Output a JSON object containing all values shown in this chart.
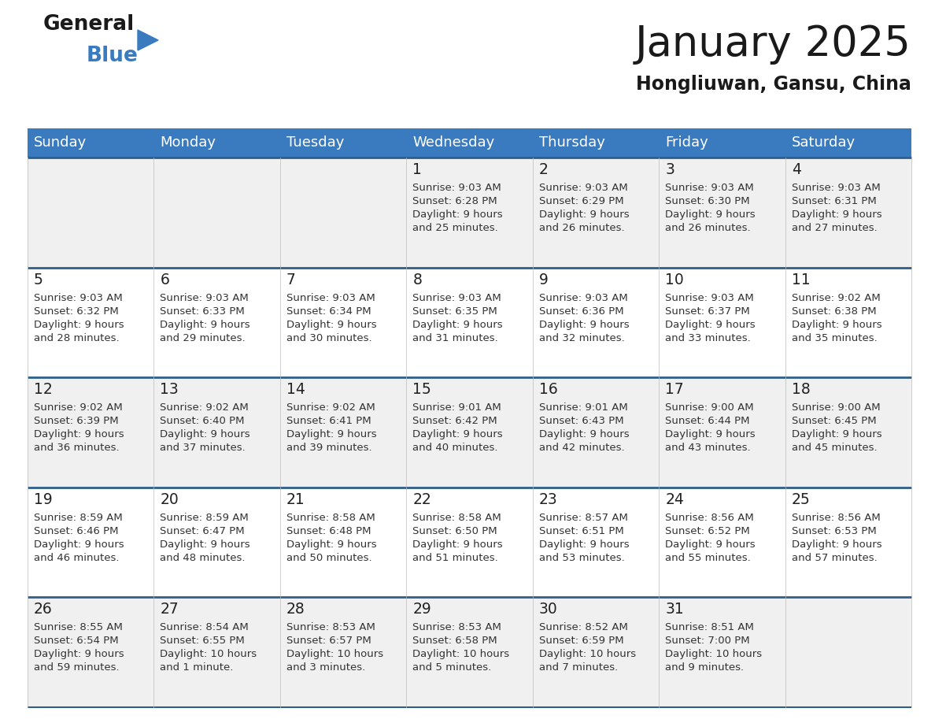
{
  "title": "January 2025",
  "subtitle": "Hongliuwan, Gansu, China",
  "days_of_week": [
    "Sunday",
    "Monday",
    "Tuesday",
    "Wednesday",
    "Thursday",
    "Friday",
    "Saturday"
  ],
  "header_bg": "#3a7bbf",
  "header_text": "#ffffff",
  "row_bg_odd": "#f0f0f0",
  "row_bg_even": "#ffffff",
  "separator_color": "#2e5f8a",
  "day_num_color": "#222222",
  "text_color": "#333333",
  "title_color": "#1a1a1a",
  "subtitle_color": "#1a1a1a",
  "logo_general_color": "#1a1a1a",
  "logo_blue_color": "#3a7bbf",
  "logo_triangle_color": "#3a7bbf",
  "calendar_data": [
    {
      "day": 1,
      "col": 3,
      "row": 0,
      "sunrise": "9:03 AM",
      "sunset": "6:28 PM",
      "daylight_h": "9 hours",
      "daylight_m": "and 25 minutes."
    },
    {
      "day": 2,
      "col": 4,
      "row": 0,
      "sunrise": "9:03 AM",
      "sunset": "6:29 PM",
      "daylight_h": "9 hours",
      "daylight_m": "and 26 minutes."
    },
    {
      "day": 3,
      "col": 5,
      "row": 0,
      "sunrise": "9:03 AM",
      "sunset": "6:30 PM",
      "daylight_h": "9 hours",
      "daylight_m": "and 26 minutes."
    },
    {
      "day": 4,
      "col": 6,
      "row": 0,
      "sunrise": "9:03 AM",
      "sunset": "6:31 PM",
      "daylight_h": "9 hours",
      "daylight_m": "and 27 minutes."
    },
    {
      "day": 5,
      "col": 0,
      "row": 1,
      "sunrise": "9:03 AM",
      "sunset": "6:32 PM",
      "daylight_h": "9 hours",
      "daylight_m": "and 28 minutes."
    },
    {
      "day": 6,
      "col": 1,
      "row": 1,
      "sunrise": "9:03 AM",
      "sunset": "6:33 PM",
      "daylight_h": "9 hours",
      "daylight_m": "and 29 minutes."
    },
    {
      "day": 7,
      "col": 2,
      "row": 1,
      "sunrise": "9:03 AM",
      "sunset": "6:34 PM",
      "daylight_h": "9 hours",
      "daylight_m": "and 30 minutes."
    },
    {
      "day": 8,
      "col": 3,
      "row": 1,
      "sunrise": "9:03 AM",
      "sunset": "6:35 PM",
      "daylight_h": "9 hours",
      "daylight_m": "and 31 minutes."
    },
    {
      "day": 9,
      "col": 4,
      "row": 1,
      "sunrise": "9:03 AM",
      "sunset": "6:36 PM",
      "daylight_h": "9 hours",
      "daylight_m": "and 32 minutes."
    },
    {
      "day": 10,
      "col": 5,
      "row": 1,
      "sunrise": "9:03 AM",
      "sunset": "6:37 PM",
      "daylight_h": "9 hours",
      "daylight_m": "and 33 minutes."
    },
    {
      "day": 11,
      "col": 6,
      "row": 1,
      "sunrise": "9:02 AM",
      "sunset": "6:38 PM",
      "daylight_h": "9 hours",
      "daylight_m": "and 35 minutes."
    },
    {
      "day": 12,
      "col": 0,
      "row": 2,
      "sunrise": "9:02 AM",
      "sunset": "6:39 PM",
      "daylight_h": "9 hours",
      "daylight_m": "and 36 minutes."
    },
    {
      "day": 13,
      "col": 1,
      "row": 2,
      "sunrise": "9:02 AM",
      "sunset": "6:40 PM",
      "daylight_h": "9 hours",
      "daylight_m": "and 37 minutes."
    },
    {
      "day": 14,
      "col": 2,
      "row": 2,
      "sunrise": "9:02 AM",
      "sunset": "6:41 PM",
      "daylight_h": "9 hours",
      "daylight_m": "and 39 minutes."
    },
    {
      "day": 15,
      "col": 3,
      "row": 2,
      "sunrise": "9:01 AM",
      "sunset": "6:42 PM",
      "daylight_h": "9 hours",
      "daylight_m": "and 40 minutes."
    },
    {
      "day": 16,
      "col": 4,
      "row": 2,
      "sunrise": "9:01 AM",
      "sunset": "6:43 PM",
      "daylight_h": "9 hours",
      "daylight_m": "and 42 minutes."
    },
    {
      "day": 17,
      "col": 5,
      "row": 2,
      "sunrise": "9:00 AM",
      "sunset": "6:44 PM",
      "daylight_h": "9 hours",
      "daylight_m": "and 43 minutes."
    },
    {
      "day": 18,
      "col": 6,
      "row": 2,
      "sunrise": "9:00 AM",
      "sunset": "6:45 PM",
      "daylight_h": "9 hours",
      "daylight_m": "and 45 minutes."
    },
    {
      "day": 19,
      "col": 0,
      "row": 3,
      "sunrise": "8:59 AM",
      "sunset": "6:46 PM",
      "daylight_h": "9 hours",
      "daylight_m": "and 46 minutes."
    },
    {
      "day": 20,
      "col": 1,
      "row": 3,
      "sunrise": "8:59 AM",
      "sunset": "6:47 PM",
      "daylight_h": "9 hours",
      "daylight_m": "and 48 minutes."
    },
    {
      "day": 21,
      "col": 2,
      "row": 3,
      "sunrise": "8:58 AM",
      "sunset": "6:48 PM",
      "daylight_h": "9 hours",
      "daylight_m": "and 50 minutes."
    },
    {
      "day": 22,
      "col": 3,
      "row": 3,
      "sunrise": "8:58 AM",
      "sunset": "6:50 PM",
      "daylight_h": "9 hours",
      "daylight_m": "and 51 minutes."
    },
    {
      "day": 23,
      "col": 4,
      "row": 3,
      "sunrise": "8:57 AM",
      "sunset": "6:51 PM",
      "daylight_h": "9 hours",
      "daylight_m": "and 53 minutes."
    },
    {
      "day": 24,
      "col": 5,
      "row": 3,
      "sunrise": "8:56 AM",
      "sunset": "6:52 PM",
      "daylight_h": "9 hours",
      "daylight_m": "and 55 minutes."
    },
    {
      "day": 25,
      "col": 6,
      "row": 3,
      "sunrise": "8:56 AM",
      "sunset": "6:53 PM",
      "daylight_h": "9 hours",
      "daylight_m": "and 57 minutes."
    },
    {
      "day": 26,
      "col": 0,
      "row": 4,
      "sunrise": "8:55 AM",
      "sunset": "6:54 PM",
      "daylight_h": "9 hours",
      "daylight_m": "and 59 minutes."
    },
    {
      "day": 27,
      "col": 1,
      "row": 4,
      "sunrise": "8:54 AM",
      "sunset": "6:55 PM",
      "daylight_h": "10 hours",
      "daylight_m": "and 1 minute."
    },
    {
      "day": 28,
      "col": 2,
      "row": 4,
      "sunrise": "8:53 AM",
      "sunset": "6:57 PM",
      "daylight_h": "10 hours",
      "daylight_m": "and 3 minutes."
    },
    {
      "day": 29,
      "col": 3,
      "row": 4,
      "sunrise": "8:53 AM",
      "sunset": "6:58 PM",
      "daylight_h": "10 hours",
      "daylight_m": "and 5 minutes."
    },
    {
      "day": 30,
      "col": 4,
      "row": 4,
      "sunrise": "8:52 AM",
      "sunset": "6:59 PM",
      "daylight_h": "10 hours",
      "daylight_m": "and 7 minutes."
    },
    {
      "day": 31,
      "col": 5,
      "row": 4,
      "sunrise": "8:51 AM",
      "sunset": "7:00 PM",
      "daylight_h": "10 hours",
      "daylight_m": "and 9 minutes."
    }
  ]
}
